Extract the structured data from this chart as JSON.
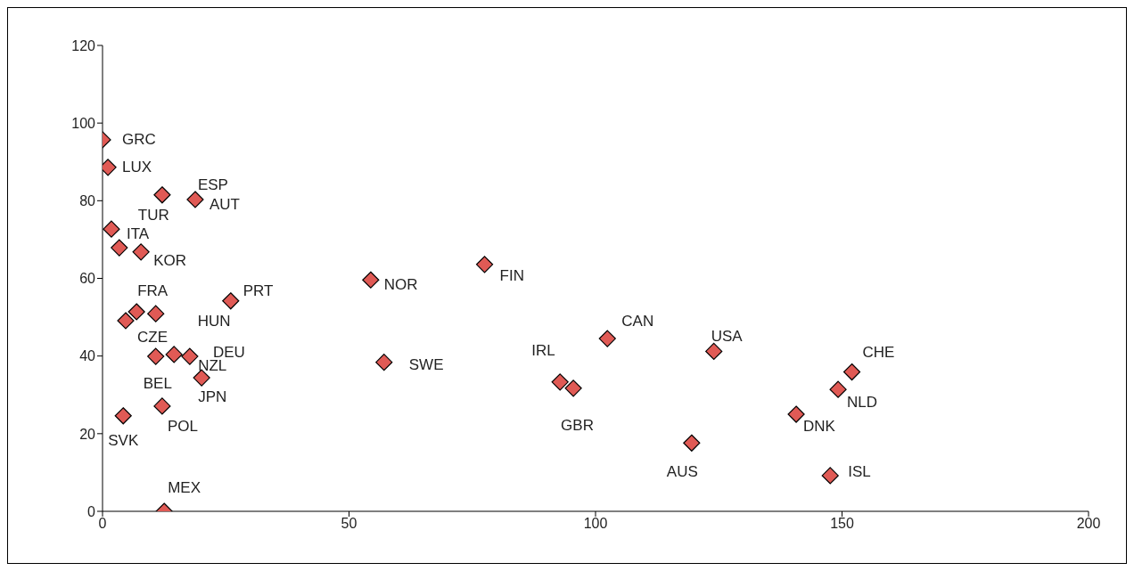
{
  "chart_data": {
    "type": "scatter",
    "marker": "diamond",
    "color": "#e05a55",
    "x": [
      0,
      1.1,
      12.1,
      18.8,
      1.8,
      3.4,
      7.8,
      6.9,
      10.8,
      4.7,
      26.0,
      10.8,
      14.5,
      17.7,
      20.1,
      12.1,
      4.2,
      12.5,
      54.4,
      77.5,
      57.1,
      92.8,
      95.5,
      102.4,
      124.0,
      152.0,
      149.2,
      140.7,
      119.5,
      147.6
    ],
    "values": [
      95.7,
      88.6,
      81.5,
      80.3,
      72.7,
      67.9,
      66.8,
      51.4,
      50.9,
      49.1,
      54.2,
      39.9,
      40.4,
      39.9,
      34.4,
      27.1,
      24.6,
      0,
      59.6,
      63.6,
      38.4,
      33.3,
      31.7,
      44.5,
      41.2,
      35.9,
      31.4,
      25.0,
      17.6,
      9.2
    ],
    "annotations": [
      {
        "text": "GRC",
        "x": 0,
        "y": 95.7
      },
      {
        "text": "LUX",
        "x": 1.1,
        "y": 88.6
      },
      {
        "text": "ESP",
        "x": 12.1,
        "y": 81.5
      },
      {
        "text": "AUT",
        "x": 18.8,
        "y": 80.3
      },
      {
        "text": "ITA",
        "x": 1.8,
        "y": 72.7
      },
      {
        "text": "TUR",
        "x": 3.4,
        "y": 67.9
      },
      {
        "text": "KOR",
        "x": 7.8,
        "y": 66.8
      },
      {
        "text": "FRA",
        "x": 6.9,
        "y": 51.4
      },
      {
        "text": "HUN",
        "x": 10.8,
        "y": 50.9
      },
      {
        "text": "CZE",
        "x": 4.7,
        "y": 49.1
      },
      {
        "text": "PRT",
        "x": 26.0,
        "y": 54.2
      },
      {
        "text": "BEL",
        "x": 10.8,
        "y": 39.9
      },
      {
        "text": "NZL",
        "x": 14.5,
        "y": 40.4
      },
      {
        "text": "DEU",
        "x": 17.7,
        "y": 39.9
      },
      {
        "text": "JPN",
        "x": 20.1,
        "y": 34.4
      },
      {
        "text": "POL",
        "x": 12.1,
        "y": 27.1
      },
      {
        "text": "SVK",
        "x": 4.2,
        "y": 24.6
      },
      {
        "text": "MEX",
        "x": 12.5,
        "y": 0
      },
      {
        "text": "NOR",
        "x": 54.4,
        "y": 59.6
      },
      {
        "text": "FIN",
        "x": 77.5,
        "y": 63.6
      },
      {
        "text": "SWE",
        "x": 57.1,
        "y": 38.4
      },
      {
        "text": "IRL",
        "x": 92.8,
        "y": 33.3
      },
      {
        "text": "GBR",
        "x": 95.5,
        "y": 31.7
      },
      {
        "text": "CAN",
        "x": 102.4,
        "y": 44.5
      },
      {
        "text": "USA",
        "x": 124.0,
        "y": 41.2
      },
      {
        "text": "CHE",
        "x": 152.0,
        "y": 35.9
      },
      {
        "text": "NLD",
        "x": 149.2,
        "y": 31.4
      },
      {
        "text": "DNK",
        "x": 140.7,
        "y": 25.0
      },
      {
        "text": "AUS",
        "x": 119.5,
        "y": 17.6
      },
      {
        "text": "ISL",
        "x": 147.6,
        "y": 9.2
      }
    ],
    "xlim": [
      0,
      200
    ],
    "xticks": [
      0,
      50,
      100,
      150,
      200
    ],
    "ylim": [
      0,
      120
    ],
    "yticks": [
      0,
      20,
      40,
      60,
      80,
      100,
      120
    ],
    "grid": false,
    "legend": false
  }
}
